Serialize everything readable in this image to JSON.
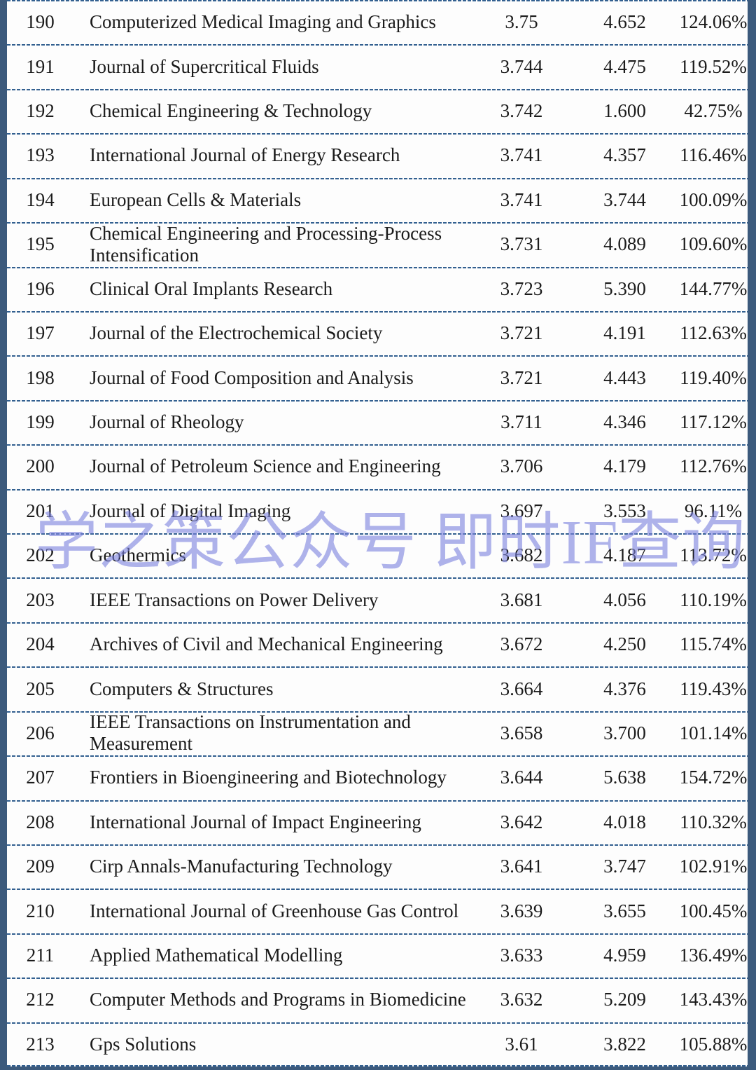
{
  "watermark": {
    "text": "学之策公众号 即时IF查询",
    "color": "#7a80de"
  },
  "colors": {
    "frame_border": "#3c5a7c",
    "dashed_separator": "#336090",
    "text": "#1b1b1b",
    "background": "#fdfdfd"
  },
  "table": {
    "rows": [
      {
        "rank": "190",
        "journal": "Computerized Medical Imaging and Graphics",
        "v1": "3.75",
        "v2": "4.652",
        "pct": "124.06%"
      },
      {
        "rank": "191",
        "journal": "Journal of Supercritical Fluids",
        "v1": "3.744",
        "v2": "4.475",
        "pct": "119.52%"
      },
      {
        "rank": "192",
        "journal": "Chemical Engineering & Technology",
        "v1": "3.742",
        "v2": "1.600",
        "pct": "42.75%"
      },
      {
        "rank": "193",
        "journal": "International Journal of Energy Research",
        "v1": "3.741",
        "v2": "4.357",
        "pct": "116.46%"
      },
      {
        "rank": "194",
        "journal": "European Cells & Materials",
        "v1": "3.741",
        "v2": "3.744",
        "pct": "100.09%"
      },
      {
        "rank": "195",
        "journal": "Chemical Engineering and Processing-Process Intensification",
        "v1": "3.731",
        "v2": "4.089",
        "pct": "109.60%"
      },
      {
        "rank": "196",
        "journal": "Clinical Oral Implants Research",
        "v1": "3.723",
        "v2": "5.390",
        "pct": "144.77%"
      },
      {
        "rank": "197",
        "journal": "Journal of the Electrochemical Society",
        "v1": "3.721",
        "v2": "4.191",
        "pct": "112.63%"
      },
      {
        "rank": "198",
        "journal": "Journal of Food Composition and Analysis",
        "v1": "3.721",
        "v2": "4.443",
        "pct": "119.40%"
      },
      {
        "rank": "199",
        "journal": "Journal of Rheology",
        "v1": "3.711",
        "v2": "4.346",
        "pct": "117.12%"
      },
      {
        "rank": "200",
        "journal": "Journal of Petroleum Science and Engineering",
        "v1": "3.706",
        "v2": "4.179",
        "pct": "112.76%"
      },
      {
        "rank": "201",
        "journal": "Journal of Digital Imaging",
        "v1": "3.697",
        "v2": "3.553",
        "pct": "96.11%"
      },
      {
        "rank": "202",
        "journal": "Geothermics",
        "v1": "3.682",
        "v2": "4.187",
        "pct": "113.72%"
      },
      {
        "rank": "203",
        "journal": "IEEE Transactions on Power Delivery",
        "v1": "3.681",
        "v2": "4.056",
        "pct": "110.19%"
      },
      {
        "rank": "204",
        "journal": "Archives of Civil and Mechanical Engineering",
        "v1": "3.672",
        "v2": "4.250",
        "pct": "115.74%"
      },
      {
        "rank": "205",
        "journal": "Computers & Structures",
        "v1": "3.664",
        "v2": "4.376",
        "pct": "119.43%"
      },
      {
        "rank": "206",
        "journal": "IEEE Transactions on Instrumentation and Measurement",
        "v1": "3.658",
        "v2": "3.700",
        "pct": "101.14%"
      },
      {
        "rank": "207",
        "journal": "Frontiers in Bioengineering and Biotechnology",
        "v1": "3.644",
        "v2": "5.638",
        "pct": "154.72%"
      },
      {
        "rank": "208",
        "journal": "International Journal of Impact Engineering",
        "v1": "3.642",
        "v2": "4.018",
        "pct": "110.32%"
      },
      {
        "rank": "209",
        "journal": "Cirp Annals-Manufacturing Technology",
        "v1": "3.641",
        "v2": "3.747",
        "pct": "102.91%"
      },
      {
        "rank": "210",
        "journal": "International Journal of Greenhouse Gas Control",
        "v1": "3.639",
        "v2": "3.655",
        "pct": "100.45%"
      },
      {
        "rank": "211",
        "journal": "Applied Mathematical Modelling",
        "v1": "3.633",
        "v2": "4.959",
        "pct": "136.49%"
      },
      {
        "rank": "212",
        "journal": "Computer Methods and Programs in Biomedicine",
        "v1": "3.632",
        "v2": "5.209",
        "pct": "143.43%"
      },
      {
        "rank": "213",
        "journal": "Gps Solutions",
        "v1": "3.61",
        "v2": "3.822",
        "pct": "105.88%"
      }
    ]
  }
}
